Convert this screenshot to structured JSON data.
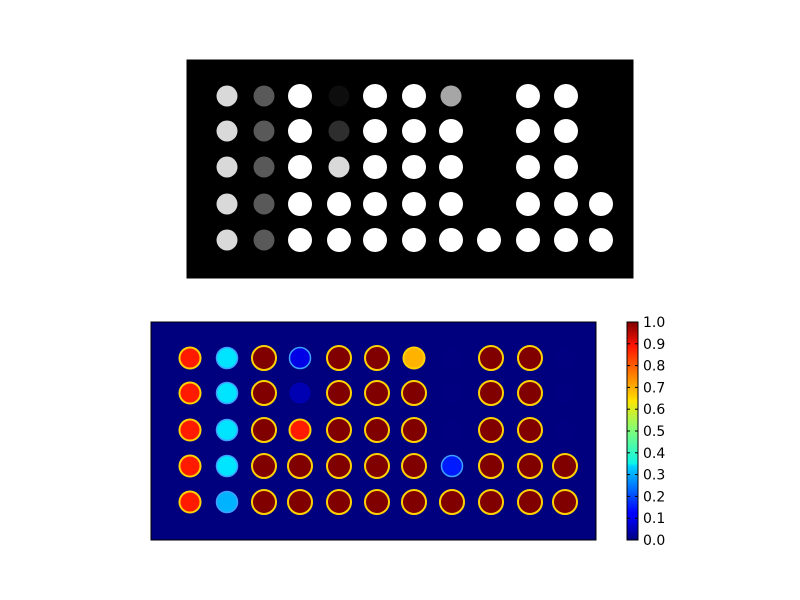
{
  "chart_data": [
    {
      "type": "heatmap",
      "name": "grayscale image",
      "colormap": "gray",
      "grid": false,
      "title": "",
      "spots": [
        [
          0.85,
          0.85,
          0.85,
          0.85,
          0.85
        ],
        [
          0.35,
          0.35,
          0.35,
          0.35,
          0.35
        ],
        [
          1.0,
          1.0,
          1.0,
          1.0,
          1.0
        ],
        [
          0.05,
          0.18,
          0.85,
          1.0,
          1.0
        ],
        [
          1.0,
          1.0,
          1.0,
          1.0,
          1.0
        ],
        [
          1.0,
          1.0,
          1.0,
          1.0,
          1.0
        ],
        [
          0.65,
          1.0,
          1.0,
          1.0,
          1.0
        ],
        [
          0.0,
          0.0,
          0.0,
          0.0,
          1.0
        ],
        [
          1.0,
          1.0,
          1.0,
          1.0,
          1.0
        ],
        [
          1.0,
          1.0,
          1.0,
          1.0,
          1.0
        ],
        [
          0.0,
          0.0,
          0.0,
          1.0,
          1.0
        ]
      ]
    },
    {
      "type": "heatmap",
      "name": "jet colormap image",
      "colormap": "jet",
      "grid": false,
      "title": "",
      "colorbar": {
        "vmin": 0.0,
        "vmax": 1.0,
        "ticks": [
          "0.0",
          "0.1",
          "0.2",
          "0.3",
          "0.4",
          "0.5",
          "0.6",
          "0.7",
          "0.8",
          "0.9",
          "1.0"
        ],
        "placement": "right"
      },
      "spots": [
        [
          0.85,
          0.85,
          0.85,
          0.85,
          0.85
        ],
        [
          0.35,
          0.35,
          0.35,
          0.35,
          0.3
        ],
        [
          1.0,
          1.0,
          1.0,
          1.0,
          1.0
        ],
        [
          0.1,
          0.05,
          0.85,
          1.0,
          1.0
        ],
        [
          1.0,
          1.0,
          1.0,
          1.0,
          1.0
        ],
        [
          1.0,
          1.0,
          1.0,
          1.0,
          1.0
        ],
        [
          0.7,
          1.0,
          1.0,
          1.0,
          1.0
        ],
        [
          0.0,
          0.0,
          0.0,
          0.15,
          1.0
        ],
        [
          1.0,
          1.0,
          1.0,
          1.0,
          1.0
        ],
        [
          1.0,
          1.0,
          1.0,
          1.0,
          1.0
        ],
        [
          0.0,
          0.0,
          0.0,
          1.0,
          1.0
        ]
      ]
    }
  ]
}
